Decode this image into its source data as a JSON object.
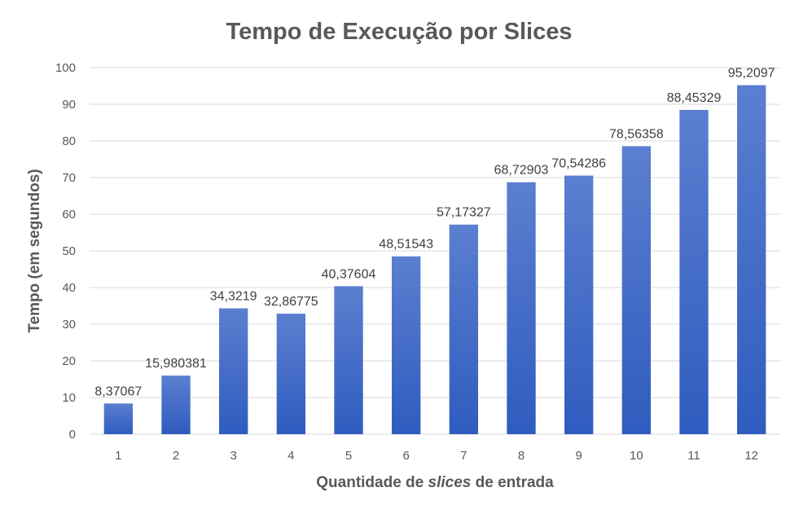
{
  "chart_data": {
    "type": "bar",
    "title": "Tempo de Execução por Slices",
    "xlabel_parts": [
      "Quantidade de ",
      "slices",
      " de entrada"
    ],
    "ylabel": "Tempo (em segundos)",
    "categories": [
      "1",
      "2",
      "3",
      "4",
      "5",
      "6",
      "7",
      "8",
      "9",
      "10",
      "11",
      "12"
    ],
    "values": [
      8.37067,
      15.980381,
      34.3219,
      32.86775,
      40.37604,
      48.51543,
      57.17327,
      68.72903,
      70.54286,
      78.56358,
      88.45329,
      95.2097
    ],
    "data_labels": [
      "8,37067",
      "15,980381",
      "34,3219",
      "32,86775",
      "40,37604",
      "48,51543",
      "57,17327",
      "68,72903",
      "70,54286",
      "78,56358",
      "88,45329",
      "95,2097"
    ],
    "ylim": [
      0,
      100
    ],
    "yticks": [
      0,
      10,
      20,
      30,
      40,
      50,
      60,
      70,
      80,
      90,
      100
    ],
    "grid": true,
    "legend": "none",
    "bar_color_top": "#5b7fd0",
    "bar_color_bottom": "#2f5cbf"
  }
}
